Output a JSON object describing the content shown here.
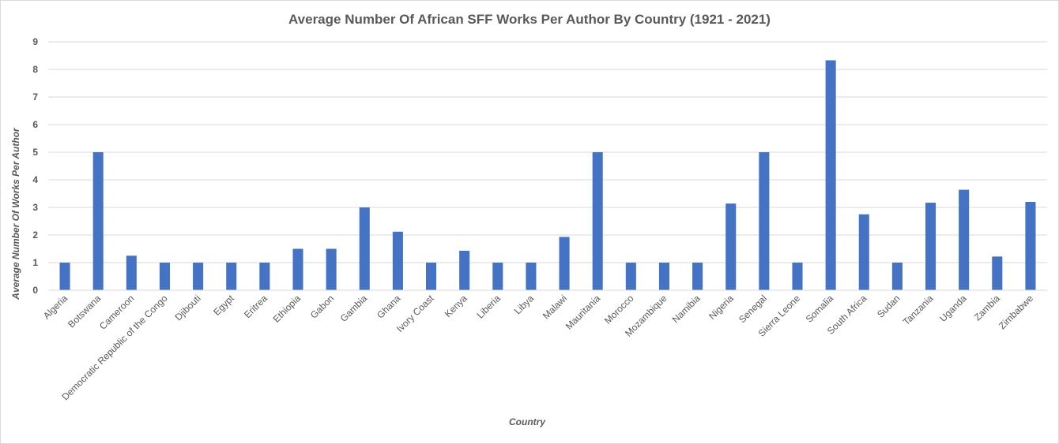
{
  "chart_data": {
    "type": "bar",
    "title": "Average Number Of African SFF Works Per Author By Country (1921 - 2021)",
    "xlabel": "Country",
    "ylabel": "Average Number Of Works Per Author",
    "ylim": [
      0,
      9
    ],
    "yticks": [
      0,
      1,
      2,
      3,
      4,
      5,
      6,
      7,
      8,
      9
    ],
    "grid": true,
    "legend": "none",
    "bar_color": "#4472c4",
    "categories": [
      "Algeria",
      "Botswana",
      "Cameroon",
      "Democratic Republic of the Congo",
      "Djibouti",
      "Egypt",
      "Eritrea",
      "Ethiopia",
      "Gabon",
      "Gambia",
      "Ghana",
      "Ivory Coast",
      "Kenya",
      "Liberia",
      "Libya",
      "Malawi",
      "Mauritania",
      "Morocco",
      "Mozambique",
      "Namibia",
      "Nigeria",
      "Senegal",
      "Sierra Leone",
      "Somalia",
      "South Africa",
      "Sudan",
      "Tanzania",
      "Uganda",
      "Zambia",
      "Zimbabwe"
    ],
    "values": [
      1,
      5,
      1.25,
      1,
      1,
      1,
      1,
      1.5,
      1.5,
      3,
      2.12,
      1,
      1.43,
      1,
      1,
      1.93,
      5,
      1,
      1,
      1,
      3.14,
      5,
      1,
      8.33,
      2.75,
      1,
      3.17,
      3.64,
      1.22,
      3.2
    ]
  }
}
